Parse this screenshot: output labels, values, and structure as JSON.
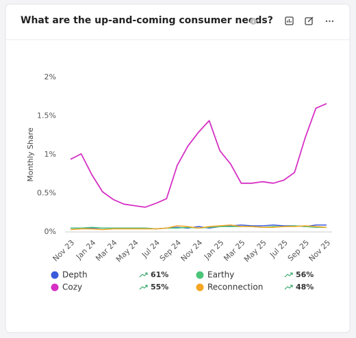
{
  "chart_data": {
    "type": "line",
    "title": "What are the up-and-coming consumer needs?",
    "y_label": "Monthly Share",
    "categories": [
      "Nov 23",
      null,
      "Jan 24",
      null,
      "Mar 24",
      null,
      "May 24",
      null,
      "Jul 24",
      null,
      "Sep 24",
      null,
      "Nov 24",
      null,
      "Jan 25",
      null,
      "Mar 25",
      null,
      "May 25",
      null,
      "Jul 25",
      null,
      "Sep 25",
      null,
      "Nov 25"
    ],
    "ylim": [
      0,
      2
    ],
    "yticks": [
      {
        "value": 0,
        "label": "0%"
      },
      {
        "value": 0.5,
        "label": "0.5%"
      },
      {
        "value": 1,
        "label": "1%"
      },
      {
        "value": 1.5,
        "label": "1.5%"
      },
      {
        "value": 2,
        "label": "2%"
      }
    ],
    "grid": false,
    "series": [
      {
        "name": "Depth",
        "color": "#3b5bdb",
        "change": "61%",
        "values": [
          0.05,
          0.05,
          0.05,
          0.05,
          0.05,
          0.05,
          0.05,
          0.05,
          0.04,
          0.05,
          0.06,
          0.05,
          0.07,
          0.05,
          0.07,
          0.08,
          0.09,
          0.08,
          0.08,
          0.09,
          0.08,
          0.08,
          0.07,
          0.09,
          0.09
        ]
      },
      {
        "name": "Cozy",
        "color": "#d62fc4",
        "change": "55%",
        "values": [
          0.94,
          1.01,
          0.74,
          0.52,
          0.42,
          0.36,
          0.34,
          0.32,
          0.37,
          0.43,
          0.86,
          1.11,
          1.29,
          1.44,
          1.05,
          0.88,
          0.63,
          0.63,
          0.65,
          0.63,
          0.67,
          0.77,
          1.22,
          1.6,
          1.66
        ]
      },
      {
        "name": "Earthy",
        "color": "#4cc47a",
        "change": "56%",
        "values": [
          0.05,
          0.05,
          0.06,
          0.05,
          0.05,
          0.05,
          0.05,
          0.05,
          0.04,
          0.05,
          0.05,
          0.06,
          0.05,
          0.06,
          0.07,
          0.07,
          0.07,
          0.07,
          0.06,
          0.07,
          0.07,
          0.08,
          0.07,
          0.06,
          0.06
        ]
      },
      {
        "name": "Reconnection",
        "color": "#f5a623",
        "change": "48%",
        "values": [
          0.03,
          0.04,
          0.04,
          0.03,
          0.04,
          0.04,
          0.04,
          0.04,
          0.04,
          0.05,
          0.08,
          0.07,
          0.05,
          0.07,
          0.08,
          0.09,
          0.07,
          0.07,
          0.06,
          0.06,
          0.07,
          0.07,
          0.08,
          0.07,
          0.06
        ]
      }
    ]
  }
}
